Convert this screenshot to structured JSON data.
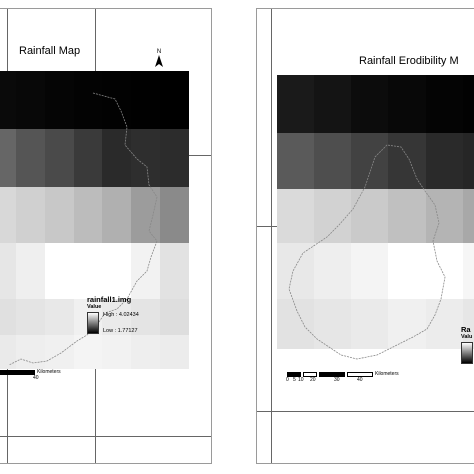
{
  "left_map": {
    "title": "Rainfall Map",
    "north_label": "N",
    "legend": {
      "title": "rainfall1.img",
      "subtitle": "Value",
      "high": "High : 4.02434",
      "low": "Low : 1.77127"
    },
    "scale": {
      "unit": "Kilometers",
      "visible_label": "40"
    },
    "top_ticks": [
      "",
      "",
      ""
    ],
    "left_ticks": []
  },
  "right_map": {
    "title": "Rainfall Erodibility M",
    "legend": {
      "title": "Ra",
      "subtitle": "Valu"
    },
    "scale": {
      "labels": [
        "0",
        "5",
        "10",
        "20",
        "30",
        "40"
      ],
      "unit": "Kilometers"
    }
  },
  "grid_colors_left": [
    [
      "#0a0a0a",
      "#080808",
      "#050505",
      "#030303",
      "#020202",
      "#010101",
      "#000000"
    ],
    [
      "#666666",
      "#555555",
      "#4a4a4a",
      "#3a3a3a",
      "#2a2a2a",
      "#2e2e2e",
      "#2c2c2c"
    ],
    [
      "#d8d8d8",
      "#d0d0d0",
      "#c8c8c8",
      "#bcbcbc",
      "#b0b0b0",
      "#9c9c9c",
      "#8a8a8a"
    ],
    [
      "#e6e6e6",
      "#efefef",
      "#ffffff",
      "#ffffff",
      "#ffffff",
      "#f2f2f2",
      "#e2e2e2"
    ],
    [
      "#e0e0e0",
      "#e4e4e4",
      "#e8e8e8",
      "#f0f0f0",
      "#eaeaea",
      "#e4e4e4",
      "#dedede"
    ],
    [
      "#eaeaea",
      "#eeeeee",
      "#f0f0f0",
      "#f4f4f4",
      "#f2f2f2",
      "#eeeeee",
      "#ececec"
    ]
  ],
  "grid_colors_right": [
    [
      "#1a1a1a",
      "#141414",
      "#0c0c0c",
      "#080808",
      "#040404",
      "#020202",
      "#000000"
    ],
    [
      "#5a5a5a",
      "#4e4e4e",
      "#424242",
      "#363636",
      "#2a2a2a",
      "#262626",
      "#222222"
    ],
    [
      "#dadada",
      "#d2d2d2",
      "#cacaca",
      "#c0c0c0",
      "#b4b4b4",
      "#a8a8a8",
      "#9c9c9c"
    ],
    [
      "#e8e8e8",
      "#eeeeee",
      "#f4f4f4",
      "#ffffff",
      "#ffffff",
      "#f6f6f6",
      "#eeeeee"
    ],
    [
      "#e2e2e2",
      "#e6e6e6",
      "#eaeaea",
      "#f0f0f0",
      "#ececec",
      "#e6e6e6",
      "#e2e2e2"
    ]
  ]
}
